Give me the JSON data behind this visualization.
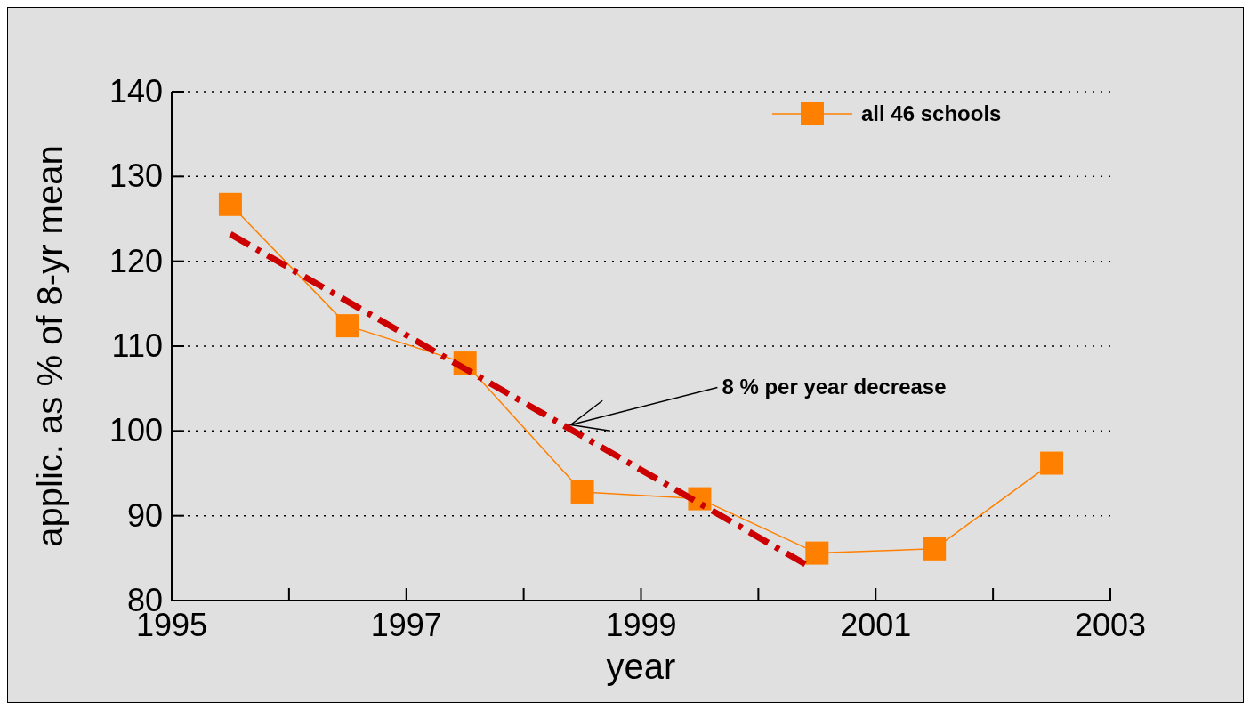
{
  "chart_data": {
    "type": "line",
    "xlabel": "year",
    "ylabel": "applic. as % of 8-yr mean",
    "xlim": [
      1995,
      2003
    ],
    "ylim": [
      80,
      140
    ],
    "xticks": [
      1995,
      {
        "value": 1996,
        "label": null
      },
      1997,
      {
        "value": 1998,
        "label": null
      },
      1999,
      {
        "value": 2000,
        "label": null
      },
      2001,
      {
        "value": 2002,
        "label": null
      },
      2003
    ],
    "yticks": [
      80,
      90,
      100,
      110,
      120,
      130,
      140
    ],
    "grid": "y",
    "legend": "top right",
    "series": [
      {
        "name": "all 46 schools",
        "color": "#ff8000",
        "marker": "square",
        "line_style": "solid",
        "x": [
          1995.5,
          1996.5,
          1997.5,
          1998.5,
          1999.5,
          2000.5,
          2001.5,
          2002.5
        ],
        "values": [
          126.7,
          112.4,
          108.0,
          92.8,
          92.0,
          85.6,
          86.1,
          96.2
        ]
      },
      {
        "type": "line",
        "color": "#cc0000",
        "marker": "none",
        "line_style": "dashed",
        "x": [
          1995.5,
          2000.4
        ],
        "values": [
          123.2,
          84.3
        ]
      }
    ],
    "annotations": [
      {
        "text": "8 % per year decrease",
        "x": 1998.4,
        "y": 100.3
      }
    ]
  }
}
